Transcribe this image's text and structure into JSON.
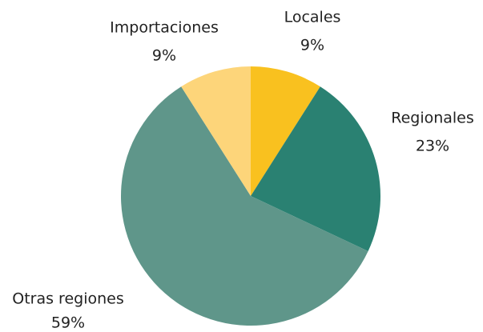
{
  "chart_data": {
    "type": "pie",
    "categories": [
      "Locales",
      "Regionales",
      "Otras regiones",
      "Importaciones"
    ],
    "values": [
      9,
      23,
      59,
      9
    ],
    "value_labels": [
      "9%",
      "23%",
      "59%",
      "9%"
    ],
    "colors": [
      "#f9c11f",
      "#2a8172",
      "#5f968a",
      "#fdd57a"
    ]
  }
}
